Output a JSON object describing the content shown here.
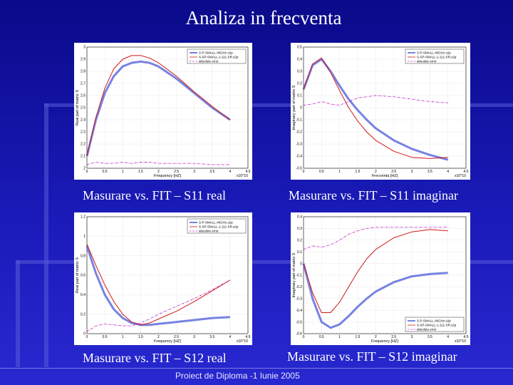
{
  "slide": {
    "title": "Analiza in frecventa",
    "footer": "Proiect de Diploma -1 Iunie 2005"
  },
  "chart_data": [
    {
      "type": "line",
      "caption": "Masurare vs. FIT – S11 real",
      "xlabel": "Frequency [HZ]",
      "ylabel": "Real part of matrix S",
      "x_exponent": "x10^10",
      "xlim": [
        0,
        4.5
      ],
      "ylim": [
        2,
        3
      ],
      "x_ticks": [
        0,
        0.5,
        1,
        1.5,
        2,
        2.5,
        3,
        3.5,
        4,
        4.5
      ],
      "y_ticks": [
        2,
        2.1,
        2.2,
        2.3,
        2.4,
        2.5,
        2.6,
        2.7,
        2.8,
        2.9,
        3
      ],
      "legend_position": "top-right",
      "x": [
        0,
        0.25,
        0.5,
        0.75,
        1,
        1.25,
        1.5,
        1.75,
        2,
        2.5,
        3,
        3.5,
        4
      ],
      "series": [
        {
          "name": "S-P-SMALL-40GHz.s2p",
          "color": "#4a5ad8",
          "style": "solid-thick",
          "values": [
            2.1,
            2.4,
            2.62,
            2.76,
            2.84,
            2.87,
            2.88,
            2.87,
            2.84,
            2.74,
            2.62,
            2.5,
            2.4
          ]
        },
        {
          "name": "S-SP-SMALL-1-111-SR.s2p",
          "color": "#d01818",
          "style": "solid",
          "values": [
            2.1,
            2.42,
            2.66,
            2.82,
            2.9,
            2.93,
            2.93,
            2.91,
            2.87,
            2.76,
            2.63,
            2.51,
            2.4
          ]
        },
        {
          "name": "absolute error",
          "color": "#c020c0",
          "style": "dashdot",
          "values": [
            2.03,
            2.05,
            2.04,
            2.04,
            2.05,
            2.04,
            2.05,
            2.05,
            2.04,
            2.04,
            2.04,
            2.03,
            2.03
          ]
        }
      ]
    },
    {
      "type": "line",
      "caption": "Masurare vs. FIT – S11 imaginar",
      "xlabel": "Frecventa [HZ]",
      "ylabel": "Imaginary part of matrix S",
      "x_exponent": "x10^10",
      "xlim": [
        0,
        4.5
      ],
      "ylim": [
        -0.5,
        0.5
      ],
      "x_ticks": [
        0,
        0.5,
        1,
        1.5,
        2,
        2.5,
        3,
        3.5,
        4,
        4.5
      ],
      "y_ticks": [
        -0.5,
        -0.4,
        -0.3,
        -0.2,
        -0.1,
        0,
        0.1,
        0.2,
        0.3,
        0.4,
        0.5
      ],
      "legend_position": "top-right",
      "x": [
        0,
        0.25,
        0.5,
        0.75,
        1,
        1.25,
        1.5,
        1.75,
        2,
        2.5,
        3,
        3.5,
        4
      ],
      "series": [
        {
          "name": "S-P-SMALL-40GHz.s2p",
          "color": "#4a5ad8",
          "style": "solid-thick",
          "values": [
            0.15,
            0.35,
            0.4,
            0.3,
            0.18,
            0.07,
            -0.02,
            -0.1,
            -0.17,
            -0.27,
            -0.34,
            -0.39,
            -0.43
          ]
        },
        {
          "name": "S-SP-SMALL-1-111-SR.s2p",
          "color": "#d01818",
          "style": "solid",
          "values": [
            0.15,
            0.36,
            0.41,
            0.29,
            0.14,
            0.0,
            -0.11,
            -0.2,
            -0.27,
            -0.36,
            -0.41,
            -0.42,
            -0.41
          ]
        },
        {
          "name": "absolute error",
          "color": "#c020c0",
          "style": "dashdot",
          "values": [
            0.02,
            0.03,
            0.05,
            0.03,
            0.02,
            0.05,
            0.08,
            0.09,
            0.1,
            0.09,
            0.07,
            0.05,
            0.04
          ]
        }
      ]
    },
    {
      "type": "line",
      "caption": "Masurare vs. FIT – S12 real",
      "xlabel": "Frequency [HZ]",
      "ylabel": "Real part of matrix S",
      "x_exponent": "x10^10",
      "xlim": [
        0,
        4.5
      ],
      "ylim": [
        0,
        1.2
      ],
      "x_ticks": [
        0,
        0.5,
        1,
        1.5,
        2,
        2.5,
        3,
        3.5,
        4,
        4.5
      ],
      "y_ticks": [
        0,
        0.2,
        0.4,
        0.6,
        0.8,
        1,
        1.2
      ],
      "legend_position": "top-right",
      "x": [
        0,
        0.25,
        0.5,
        0.75,
        1,
        1.25,
        1.5,
        1.75,
        2,
        2.5,
        3,
        3.5,
        4
      ],
      "series": [
        {
          "name": "S-P-SMALL-40GHz.s2p",
          "color": "#4a5ad8",
          "style": "solid-thick",
          "values": [
            0.9,
            0.62,
            0.4,
            0.25,
            0.16,
            0.11,
            0.09,
            0.09,
            0.1,
            0.12,
            0.14,
            0.16,
            0.17
          ]
        },
        {
          "name": "S-SP-SMALL-1-111-SR.s2p",
          "color": "#d01818",
          "style": "solid",
          "values": [
            0.92,
            0.7,
            0.5,
            0.33,
            0.2,
            0.12,
            0.09,
            0.11,
            0.15,
            0.23,
            0.33,
            0.44,
            0.55
          ]
        },
        {
          "name": "absolute error",
          "color": "#c020c0",
          "style": "dashdot",
          "values": [
            0.02,
            0.08,
            0.1,
            0.09,
            0.08,
            0.08,
            0.11,
            0.15,
            0.2,
            0.28,
            0.36,
            0.45,
            0.55
          ]
        }
      ]
    },
    {
      "type": "line",
      "caption": "Masurare vs. FIT – S12 imaginar",
      "xlabel": "Frequency [HZ]",
      "ylabel": "Imaginary part of matrix S",
      "x_exponent": "x10^10",
      "xlim": [
        0,
        4.5
      ],
      "ylim": [
        -0.6,
        0.4
      ],
      "x_ticks": [
        0,
        0.5,
        1,
        1.5,
        2,
        2.5,
        3,
        3.5,
        4,
        4.5
      ],
      "y_ticks": [
        -0.6,
        -0.5,
        -0.4,
        -0.3,
        -0.2,
        -0.1,
        0,
        0.1,
        0.2,
        0.3,
        0.4
      ],
      "legend_position": "bottom-right",
      "x": [
        0,
        0.25,
        0.5,
        0.75,
        1,
        1.25,
        1.5,
        1.75,
        2,
        2.5,
        3,
        3.5,
        4
      ],
      "series": [
        {
          "name": "S-P-SMALL-40GHz.s2p",
          "color": "#4a5ad8",
          "style": "solid-thick",
          "values": [
            0.0,
            -0.3,
            -0.5,
            -0.55,
            -0.52,
            -0.45,
            -0.37,
            -0.3,
            -0.24,
            -0.16,
            -0.11,
            -0.09,
            -0.08
          ]
        },
        {
          "name": "S-SP-SMALL-1-111-SR.s2p",
          "color": "#d01818",
          "style": "solid",
          "values": [
            0.0,
            -0.25,
            -0.42,
            -0.42,
            -0.33,
            -0.2,
            -0.07,
            0.04,
            0.12,
            0.22,
            0.27,
            0.29,
            0.28
          ]
        },
        {
          "name": "absolute error",
          "color": "#c020c0",
          "style": "dashdot",
          "values": [
            0.12,
            0.15,
            0.14,
            0.16,
            0.2,
            0.25,
            0.28,
            0.3,
            0.31,
            0.31,
            0.31,
            0.31,
            0.31
          ]
        }
      ]
    }
  ]
}
